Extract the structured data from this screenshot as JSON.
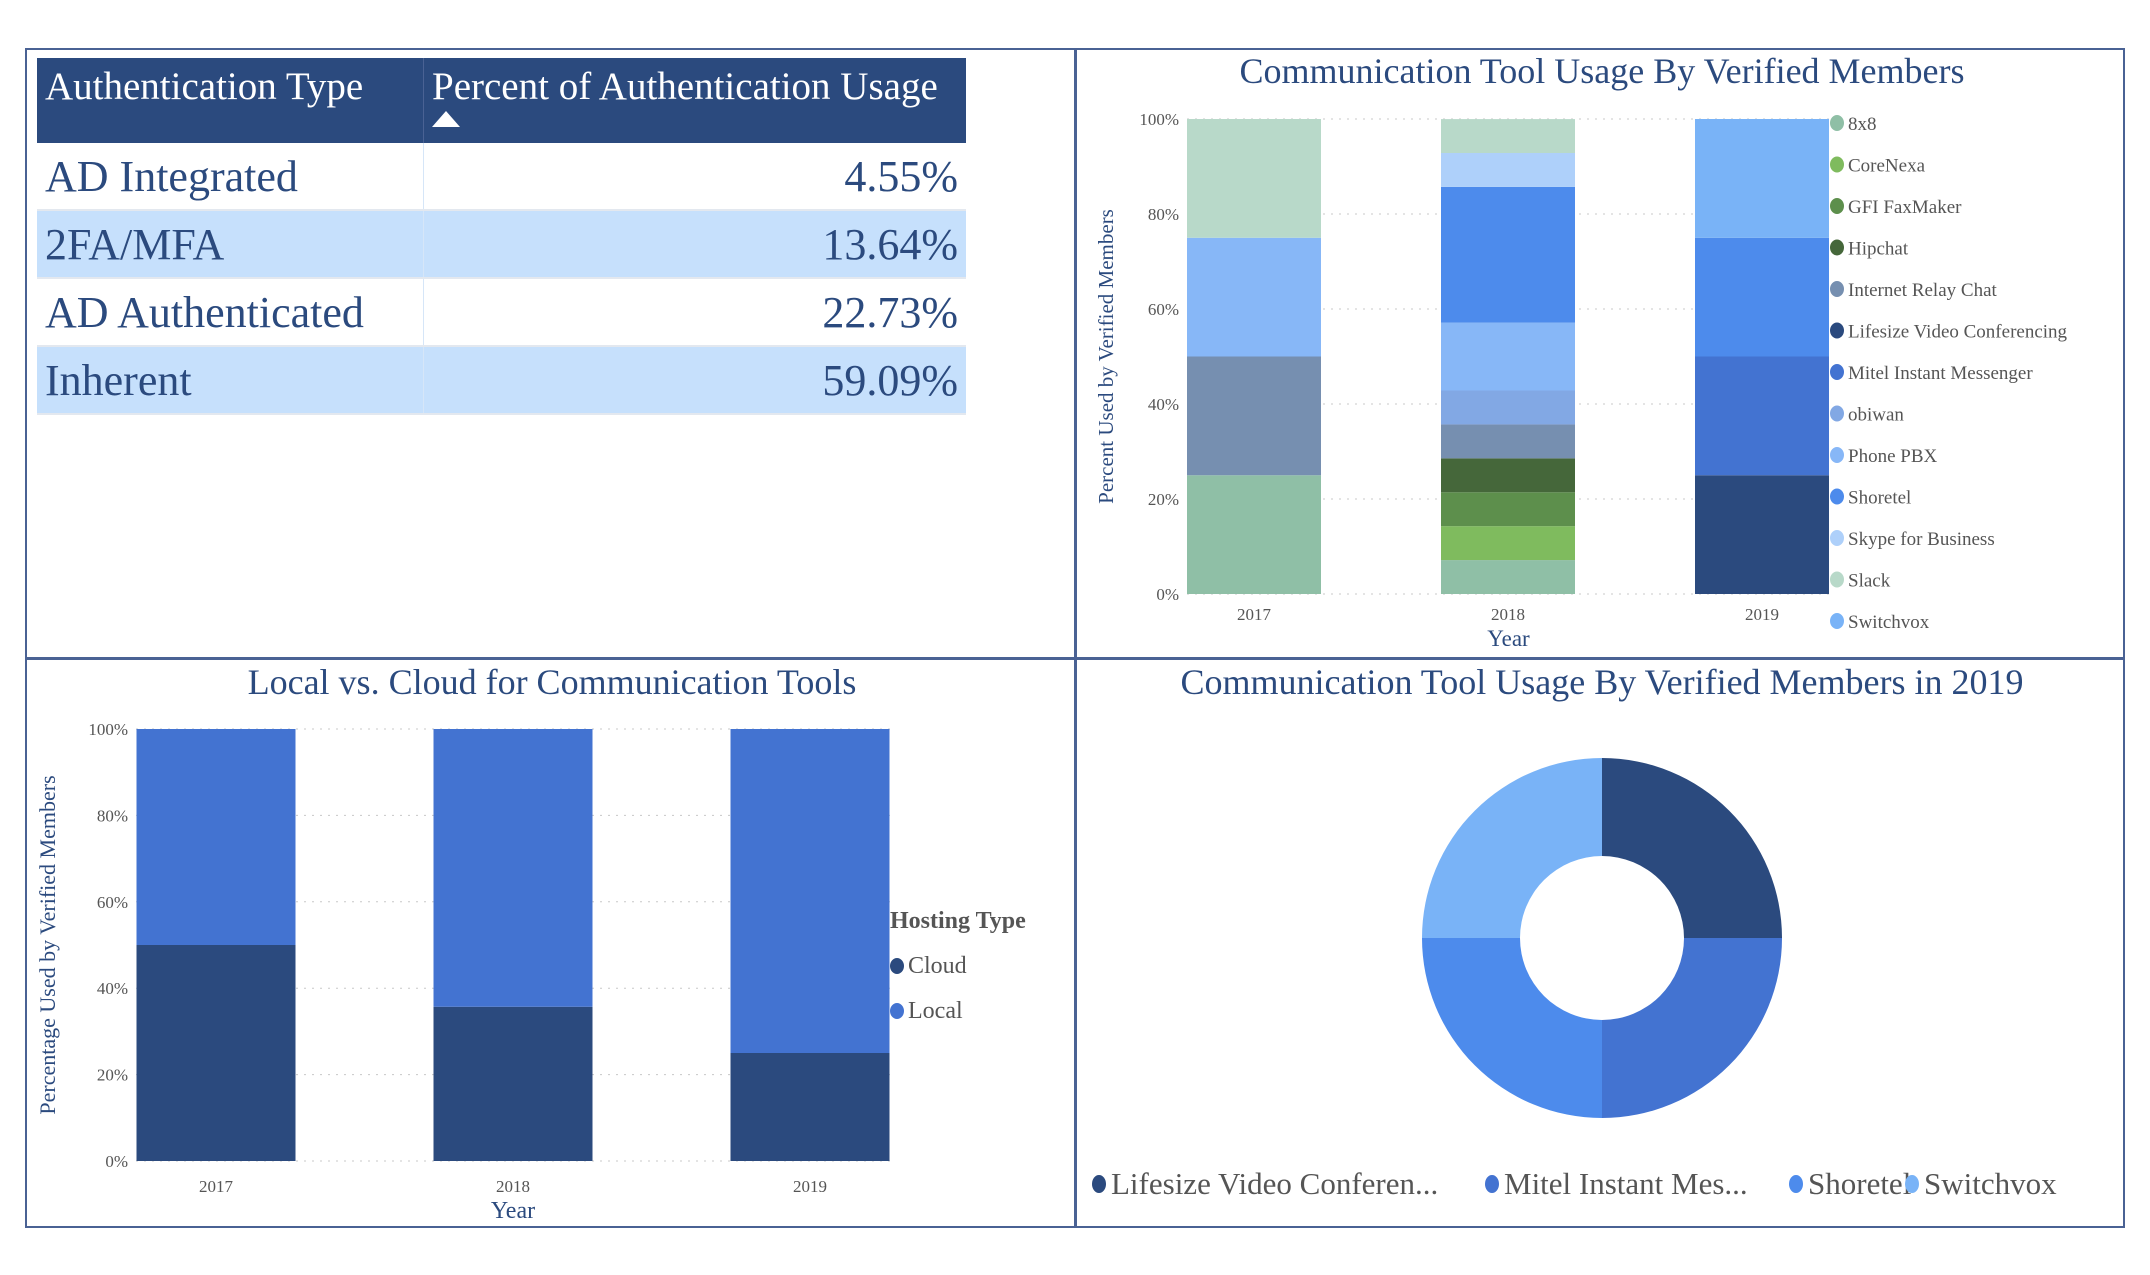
{
  "auth_table": {
    "columns": [
      "Authentication Type",
      "Percent of Authentication Usage"
    ],
    "sort_indicator": "ascending",
    "rows": [
      {
        "type": "AD Integrated",
        "percent": "4.55%"
      },
      {
        "type": "2FA/MFA",
        "percent": "13.64%"
      },
      {
        "type": "AD Authenticated",
        "percent": "22.73%"
      },
      {
        "type": "Inherent",
        "percent": "59.09%"
      }
    ]
  },
  "colors": {
    "8x8": "#8fbfa6",
    "CoreNexa": "#7fbb5e",
    "GFI FaxMaker": "#5d8f4c",
    "Hipchat": "#45673a",
    "Internet Relay Chat": "#768fb0",
    "Lifesize Video Conferencing": "#2b4a7e",
    "Mitel Instant Messenger": "#4373d1",
    "obiwan": "#82a8e4",
    "Phone PBX": "#87b7f7",
    "Shoretel": "#4d8bec",
    "Skype for Business": "#aed0fa",
    "Slack": "#b8d9c9",
    "Switchvox": "#79b3f7",
    "Cloud": "#2b4a7e",
    "Local": "#4373d1",
    "title": "#2b4a7e"
  },
  "chart_data": [
    {
      "id": "tools",
      "type": "bar",
      "stacked": "percent",
      "title": "Communication Tool Usage By Verified Members",
      "xlabel": "Year",
      "ylabel": "Percent Used by Verified Members",
      "ylim": [
        0,
        100
      ],
      "yticks": [
        "0%",
        "20%",
        "40%",
        "60%",
        "80%",
        "100%"
      ],
      "grid": true,
      "legend": "right",
      "categories": [
        "2017",
        "2018",
        "2019"
      ],
      "series": [
        {
          "name": "8x8",
          "values": [
            25,
            7.14,
            0
          ]
        },
        {
          "name": "CoreNexa",
          "values": [
            0,
            7.14,
            0
          ]
        },
        {
          "name": "GFI FaxMaker",
          "values": [
            0,
            7.14,
            0
          ]
        },
        {
          "name": "Hipchat",
          "values": [
            0,
            7.14,
            0
          ]
        },
        {
          "name": "Internet Relay Chat",
          "values": [
            25,
            7.14,
            0
          ]
        },
        {
          "name": "Lifesize Video Conferencing",
          "values": [
            0,
            0,
            25
          ]
        },
        {
          "name": "Mitel Instant Messenger",
          "values": [
            0,
            0,
            25
          ]
        },
        {
          "name": "obiwan",
          "values": [
            0,
            7.14,
            0
          ]
        },
        {
          "name": "Phone PBX",
          "values": [
            25,
            14.29,
            0
          ]
        },
        {
          "name": "Shoretel",
          "values": [
            0,
            28.57,
            25
          ]
        },
        {
          "name": "Skype for Business",
          "values": [
            0,
            7.14,
            0
          ]
        },
        {
          "name": "Slack",
          "values": [
            25,
            7.14,
            0
          ]
        },
        {
          "name": "Switchvox",
          "values": [
            0,
            0,
            25
          ]
        }
      ]
    },
    {
      "id": "hosting",
      "type": "bar",
      "stacked": "percent",
      "title": "Local vs. Cloud for Communication Tools",
      "xlabel": "Year",
      "ylabel": "Percentage Used by Verified Members",
      "ylim": [
        0,
        100
      ],
      "yticks": [
        "0%",
        "20%",
        "40%",
        "60%",
        "80%",
        "100%"
      ],
      "grid": true,
      "legend": "right",
      "legend_title": "Hosting Type",
      "categories": [
        "2017",
        "2018",
        "2019"
      ],
      "series": [
        {
          "name": "Cloud",
          "values": [
            50,
            35.7,
            25
          ]
        },
        {
          "name": "Local",
          "values": [
            50,
            64.3,
            75
          ]
        }
      ]
    },
    {
      "id": "donut",
      "type": "pie",
      "donut": true,
      "title": "Communication Tool Usage By Verified Members in 2019",
      "legend": "bottom",
      "slices": [
        {
          "name": "Lifesize Video Conferencing",
          "label": "Lifesize Video Conferen...",
          "value": 25
        },
        {
          "name": "Mitel Instant Messenger",
          "label": "Mitel Instant Mes...",
          "value": 25
        },
        {
          "name": "Shoretel",
          "label": "Shoretel",
          "value": 25
        },
        {
          "name": "Switchvox",
          "label": "Switchvox",
          "value": 25
        }
      ]
    }
  ]
}
